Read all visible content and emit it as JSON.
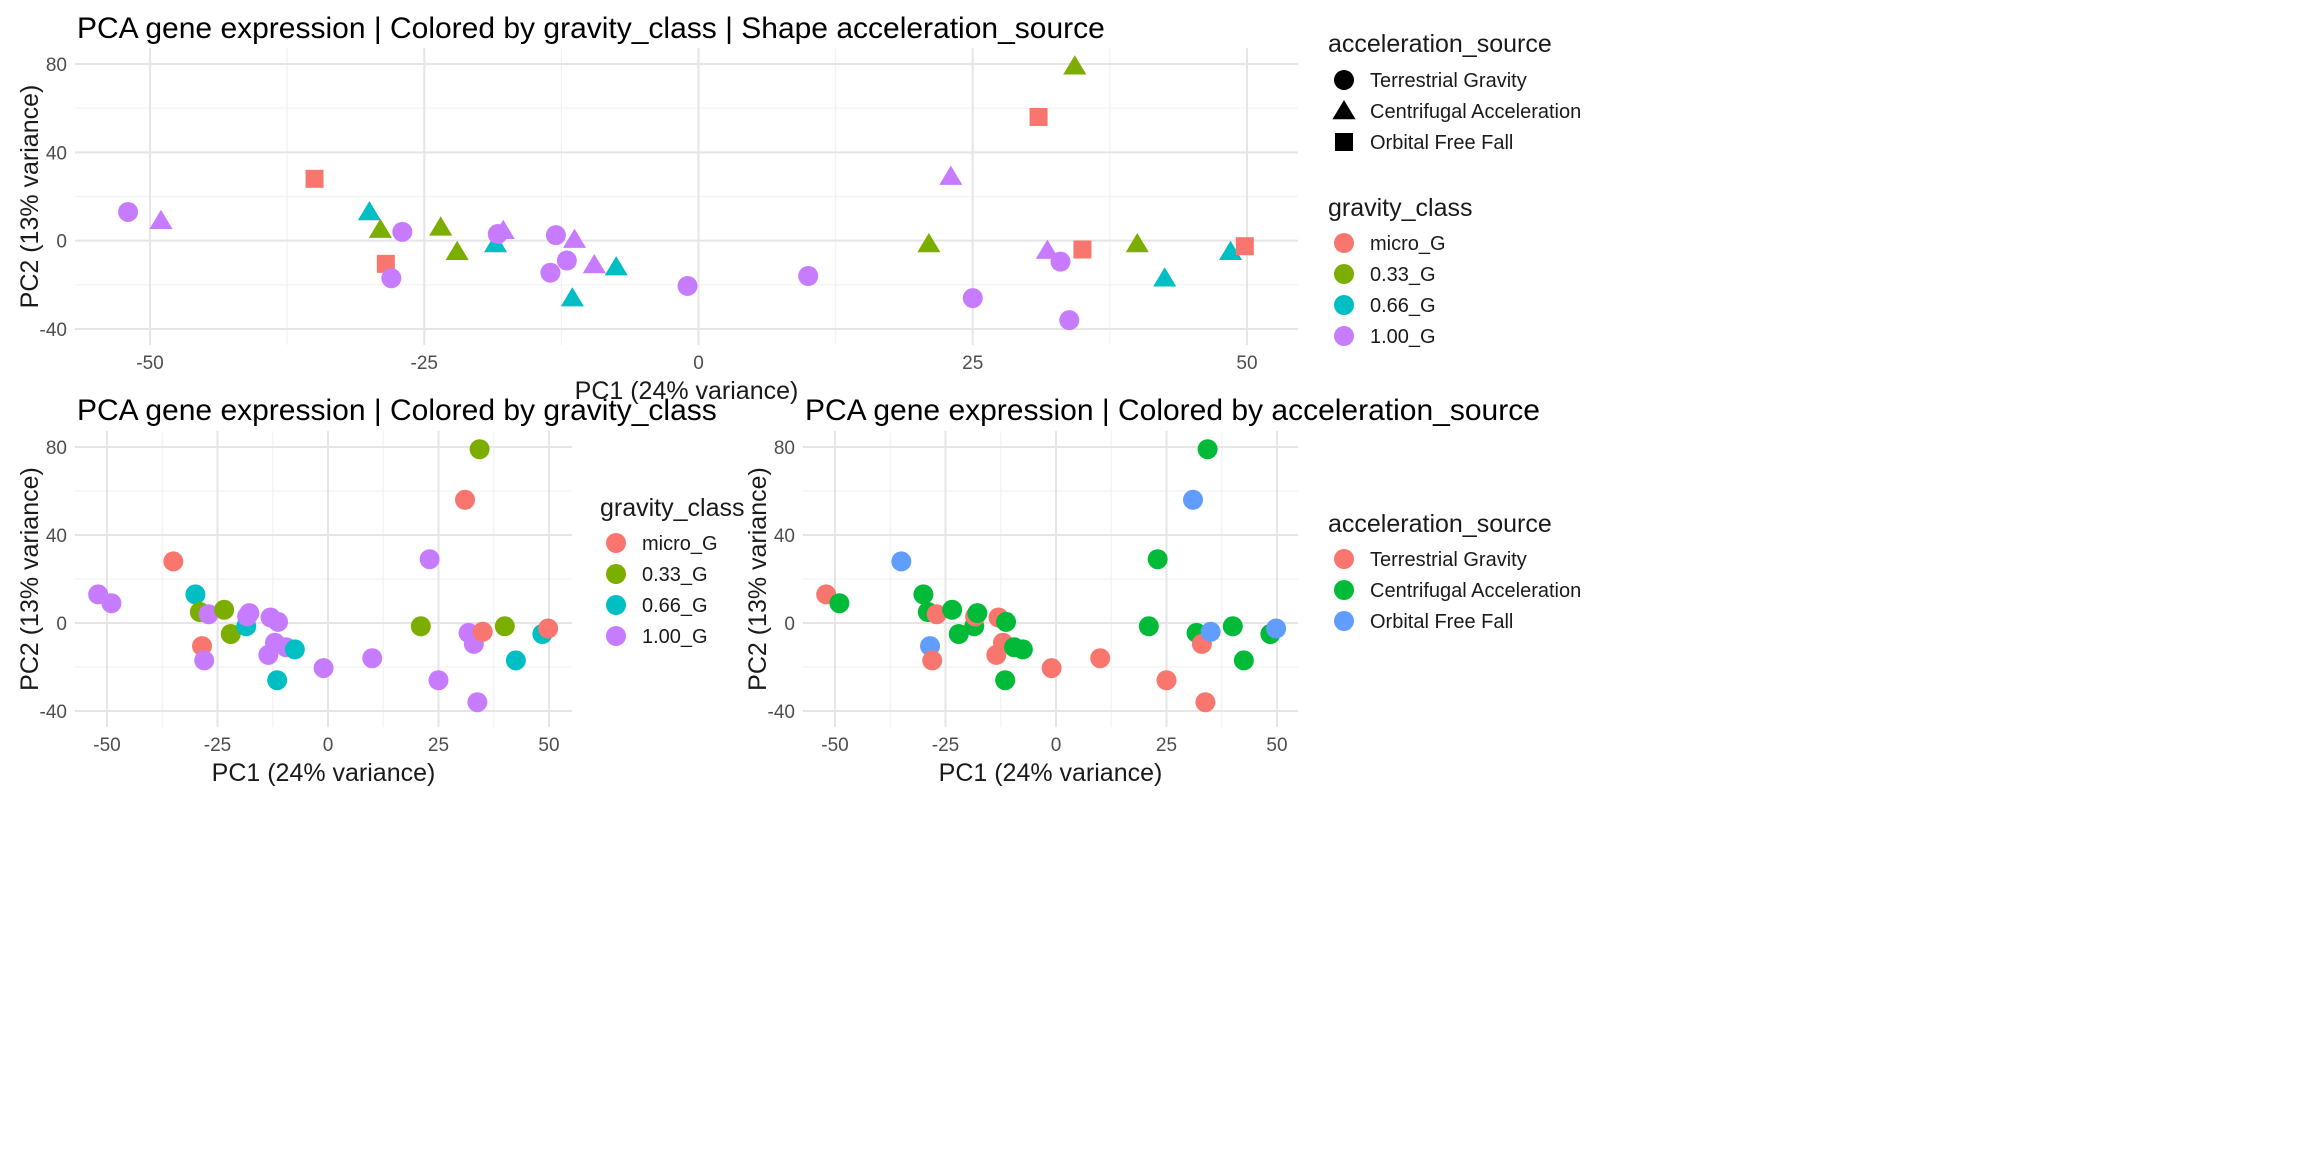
{
  "chart_data": [
    {
      "type": "scatter",
      "title": "PCA gene expression | Colored by gravity_class | Shape acceleration_source",
      "xlabel": "PC1 (24% variance)",
      "ylabel": "PC2 (13% variance)",
      "xlim": [
        -55,
        55
      ],
      "ylim": [
        -40,
        80
      ],
      "x_ticks": [
        "-50",
        "-25",
        "0",
        "25",
        "50"
      ],
      "y_ticks": [
        "-40",
        "0",
        "40",
        "80"
      ],
      "grid": true,
      "color_by": "gravity_class",
      "shape_by": "acceleration_source",
      "legends": [
        {
          "title": "acceleration_source",
          "kind": "shape",
          "entries": [
            {
              "label": "Terrestrial Gravity",
              "shape": "circle"
            },
            {
              "label": "Centrifugal Acceleration",
              "shape": "triangle"
            },
            {
              "label": "Orbital Free Fall",
              "shape": "square"
            }
          ]
        },
        {
          "title": "gravity_class",
          "kind": "color",
          "entries": [
            {
              "label": "micro_G",
              "color": "#F8766D"
            },
            {
              "label": "0.33_G",
              "color": "#7CAE00"
            },
            {
              "label": "0.66_G",
              "color": "#00BFC4"
            },
            {
              "label": "1.00_G",
              "color": "#C77CFF"
            }
          ]
        }
      ]
    },
    {
      "type": "scatter",
      "title": "PCA gene expression | Colored by gravity_class",
      "xlabel": "PC1 (24% variance)",
      "ylabel": "PC2 (13% variance)",
      "xlim": [
        -55,
        55
      ],
      "ylim": [
        -40,
        80
      ],
      "x_ticks": [
        "-50",
        "-25",
        "0",
        "25",
        "50"
      ],
      "y_ticks": [
        "-40",
        "0",
        "40",
        "80"
      ],
      "grid": true,
      "color_by": "gravity_class",
      "shape_by": "",
      "legends": [
        {
          "title": "gravity_class",
          "kind": "color",
          "entries": [
            {
              "label": "micro_G",
              "color": "#F8766D"
            },
            {
              "label": "0.33_G",
              "color": "#7CAE00"
            },
            {
              "label": "0.66_G",
              "color": "#00BFC4"
            },
            {
              "label": "1.00_G",
              "color": "#C77CFF"
            }
          ]
        }
      ]
    },
    {
      "type": "scatter",
      "title": "PCA gene expression | Colored by acceleration_source",
      "xlabel": "PC1 (24% variance)",
      "ylabel": "PC2 (13% variance)",
      "xlim": [
        -55,
        55
      ],
      "ylim": [
        -40,
        80
      ],
      "x_ticks": [
        "-50",
        "-25",
        "0",
        "25",
        "50"
      ],
      "y_ticks": [
        "-40",
        "0",
        "40",
        "80"
      ],
      "grid": true,
      "color_by": "acceleration_source",
      "shape_by": "",
      "legends": [
        {
          "title": "acceleration_source",
          "kind": "color",
          "entries": [
            {
              "label": "Terrestrial Gravity",
              "color": "#F8766D"
            },
            {
              "label": "Centrifugal Acceleration",
              "color": "#00BA38"
            },
            {
              "label": "Orbital Free Fall",
              "color": "#619CFF"
            }
          ]
        }
      ]
    }
  ],
  "samples": [
    {
      "x": -52,
      "y": 13,
      "gravity_class": "1.00_G",
      "acceleration_source": "Terrestrial Gravity"
    },
    {
      "x": -49,
      "y": 9,
      "gravity_class": "1.00_G",
      "acceleration_source": "Centrifugal Acceleration"
    },
    {
      "x": -35,
      "y": 28,
      "gravity_class": "micro_G",
      "acceleration_source": "Orbital Free Fall"
    },
    {
      "x": -30,
      "y": 13,
      "gravity_class": "0.66_G",
      "acceleration_source": "Centrifugal Acceleration"
    },
    {
      "x": -29,
      "y": 5,
      "gravity_class": "0.33_G",
      "acceleration_source": "Centrifugal Acceleration"
    },
    {
      "x": -28.5,
      "y": -10.5,
      "gravity_class": "micro_G",
      "acceleration_source": "Orbital Free Fall"
    },
    {
      "x": -28,
      "y": -17,
      "gravity_class": "1.00_G",
      "acceleration_source": "Terrestrial Gravity"
    },
    {
      "x": -27,
      "y": 4,
      "gravity_class": "1.00_G",
      "acceleration_source": "Terrestrial Gravity"
    },
    {
      "x": -23.5,
      "y": 6,
      "gravity_class": "0.33_G",
      "acceleration_source": "Centrifugal Acceleration"
    },
    {
      "x": -22,
      "y": -5,
      "gravity_class": "0.33_G",
      "acceleration_source": "Centrifugal Acceleration"
    },
    {
      "x": -18.5,
      "y": -1.5,
      "gravity_class": "0.66_G",
      "acceleration_source": "Centrifugal Acceleration"
    },
    {
      "x": -18.3,
      "y": 3,
      "gravity_class": "1.00_G",
      "acceleration_source": "Terrestrial Gravity"
    },
    {
      "x": -17.8,
      "y": 4.5,
      "gravity_class": "1.00_G",
      "acceleration_source": "Centrifugal Acceleration"
    },
    {
      "x": -13.5,
      "y": -14.5,
      "gravity_class": "1.00_G",
      "acceleration_source": "Terrestrial Gravity"
    },
    {
      "x": -13,
      "y": 2.5,
      "gravity_class": "1.00_G",
      "acceleration_source": "Terrestrial Gravity"
    },
    {
      "x": -12,
      "y": -9,
      "gravity_class": "1.00_G",
      "acceleration_source": "Terrestrial Gravity"
    },
    {
      "x": -11.5,
      "y": -26,
      "gravity_class": "0.66_G",
      "acceleration_source": "Centrifugal Acceleration"
    },
    {
      "x": -11.3,
      "y": 0.5,
      "gravity_class": "1.00_G",
      "acceleration_source": "Centrifugal Acceleration"
    },
    {
      "x": -9.5,
      "y": -11,
      "gravity_class": "1.00_G",
      "acceleration_source": "Centrifugal Acceleration"
    },
    {
      "x": -7.5,
      "y": -12,
      "gravity_class": "0.66_G",
      "acceleration_source": "Centrifugal Acceleration"
    },
    {
      "x": -1,
      "y": -20.5,
      "gravity_class": "1.00_G",
      "acceleration_source": "Terrestrial Gravity"
    },
    {
      "x": 10,
      "y": -16,
      "gravity_class": "1.00_G",
      "acceleration_source": "Terrestrial Gravity"
    },
    {
      "x": 21,
      "y": -1.5,
      "gravity_class": "0.33_G",
      "acceleration_source": "Centrifugal Acceleration"
    },
    {
      "x": 23,
      "y": 29,
      "gravity_class": "1.00_G",
      "acceleration_source": "Centrifugal Acceleration"
    },
    {
      "x": 25,
      "y": -26,
      "gravity_class": "1.00_G",
      "acceleration_source": "Terrestrial Gravity"
    },
    {
      "x": 31,
      "y": 56,
      "gravity_class": "micro_G",
      "acceleration_source": "Orbital Free Fall"
    },
    {
      "x": 31.8,
      "y": -4.5,
      "gravity_class": "1.00_G",
      "acceleration_source": "Centrifugal Acceleration"
    },
    {
      "x": 33,
      "y": -9.5,
      "gravity_class": "1.00_G",
      "acceleration_source": "Terrestrial Gravity"
    },
    {
      "x": 33.8,
      "y": -36,
      "gravity_class": "1.00_G",
      "acceleration_source": "Terrestrial Gravity"
    },
    {
      "x": 34.3,
      "y": 79,
      "gravity_class": "0.33_G",
      "acceleration_source": "Centrifugal Acceleration"
    },
    {
      "x": 35,
      "y": -4,
      "gravity_class": "micro_G",
      "acceleration_source": "Orbital Free Fall"
    },
    {
      "x": 40,
      "y": -1.5,
      "gravity_class": "0.33_G",
      "acceleration_source": "Centrifugal Acceleration"
    },
    {
      "x": 42.5,
      "y": -17,
      "gravity_class": "0.66_G",
      "acceleration_source": "Centrifugal Acceleration"
    },
    {
      "x": 48.5,
      "y": -5,
      "gravity_class": "0.66_G",
      "acceleration_source": "Centrifugal Acceleration"
    },
    {
      "x": 49.8,
      "y": -2.5,
      "gravity_class": "micro_G",
      "acceleration_source": "Orbital Free Fall"
    }
  ]
}
